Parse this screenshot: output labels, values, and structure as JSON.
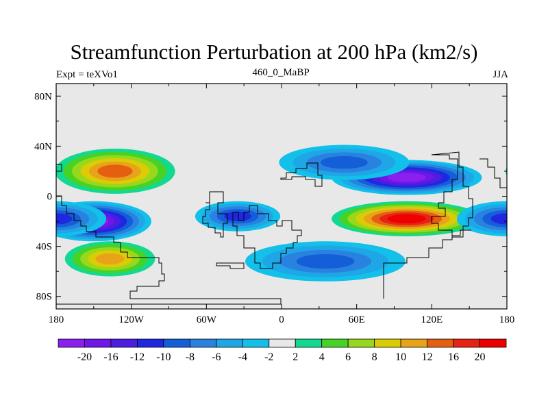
{
  "chart_data": {
    "type": "heatmap",
    "title": "Streamfunction Perturbation at 200 hPa (km2/s)",
    "left_label": "Expt = teXVo1",
    "center_label": "460_0_MaBP",
    "right_label": "JJA",
    "x_ticks": [
      "180",
      "120W",
      "60W",
      "0",
      "60E",
      "120E",
      "180"
    ],
    "x_tick_values": [
      -180,
      -120,
      -60,
      0,
      60,
      120,
      180
    ],
    "y_ticks": [
      "80N",
      "40N",
      "0",
      "40S",
      "80S"
    ],
    "y_tick_values": [
      80,
      40,
      0,
      -40,
      -80
    ],
    "xlim": [
      -180,
      180
    ],
    "ylim": [
      -90,
      90
    ],
    "levels": [
      "-20",
      "-16",
      "-12",
      "-10",
      "-8",
      "-6",
      "-4",
      "-2",
      "2",
      "4",
      "6",
      "8",
      "10",
      "12",
      "16",
      "20"
    ],
    "colors": [
      "#8a1ff0",
      "#6e17e8",
      "#4b1ee0",
      "#1f28e0",
      "#145fd8",
      "#2a82e0",
      "#1ea6e6",
      "#12c0ea",
      "#e8e8e8",
      "#12d890",
      "#48d225",
      "#98d81c",
      "#dccc06",
      "#e8a31a",
      "#e45f10",
      "#e82214",
      "#ee0000"
    ],
    "features": [
      {
        "name": "positive center over east Pacific",
        "lon": -133,
        "lat": 20,
        "value": 14
      },
      {
        "name": "negative center south Pacific",
        "lon": -150,
        "lat": -20,
        "value": -20
      },
      {
        "name": "positive center south Pacific",
        "lon": -137,
        "lat": -50,
        "value": 10
      },
      {
        "name": "negative center Asia",
        "lon": 100,
        "lat": 15,
        "value": -20
      },
      {
        "name": "negative center north Atlantic",
        "lon": 50,
        "lat": 27,
        "value": -8
      },
      {
        "name": "positive center Indian Ocean",
        "lon": 100,
        "lat": -18,
        "value": 20
      },
      {
        "name": "negative center south Atlantic",
        "lon": -35,
        "lat": -16,
        "value": -10
      },
      {
        "name": "negative center southern Indian Ocean",
        "lon": 35,
        "lat": -52,
        "value": -8
      },
      {
        "name": "negative center west Pacific",
        "lon": 180,
        "lat": -18,
        "value": -10
      }
    ]
  }
}
